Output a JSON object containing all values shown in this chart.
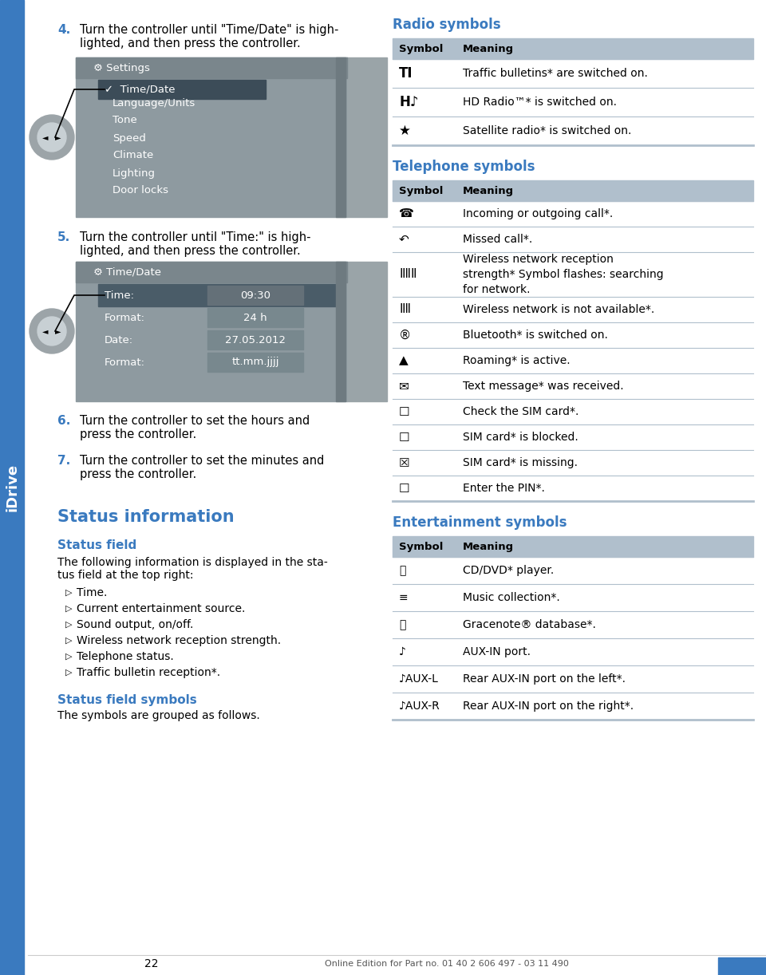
{
  "page_bg": "#ffffff",
  "page_num": "22",
  "idrive_label": "iDrive",
  "blue": "#3a7abf",
  "black": "#000000",
  "white": "#ffffff",
  "table_header_bg": "#b0bfcc",
  "table_divider_color": "#b0bfcc",
  "step4_num": "4.",
  "step4_line1": "Turn the controller until \"Time/Date\" is high-",
  "step4_line2": "lighted, and then press the controller.",
  "step5_num": "5.",
  "step5_line1": "Turn the controller until \"Time:\" is high-",
  "step5_line2": "lighted, and then press the controller.",
  "step6_num": "6.",
  "step6_line1": "Turn the controller to set the hours and",
  "step6_line2": "press the controller.",
  "step7_num": "7.",
  "step7_line1": "Turn the controller to set the minutes and",
  "step7_line2": "press the controller.",
  "status_info_heading": "Status information",
  "status_field_heading": "Status field",
  "status_field_text1": "The following information is displayed in the sta-",
  "status_field_text2": "tus field at the top right:",
  "bullet_items": [
    "Time.",
    "Current entertainment source.",
    "Sound output, on/off.",
    "Wireless network reception strength.",
    "Telephone status.",
    "Traffic bulletin reception*."
  ],
  "status_symbols_heading": "Status field symbols",
  "status_symbols_text": "The symbols are grouped as follows.",
  "radio_heading": "Radio symbols",
  "telephone_heading": "Telephone symbols",
  "entertainment_heading": "Entertainment symbols",
  "footer_text": "Online Edition for Part no. 01 40 2 606 497 - 03 11 490",
  "screen1_title": "⚙ Settings",
  "screen1_highlighted": "✓  Time/Date",
  "screen1_items": [
    "Language/Units",
    "Tone",
    "Speed",
    "Climate",
    "Lighting",
    "Door locks"
  ],
  "screen2_title": "⚙ Time/Date",
  "screen2_rows": [
    [
      "Time:",
      "09:30"
    ],
    [
      "Format:",
      "24 h"
    ],
    [
      "Date:",
      "27.05.2012"
    ],
    [
      "Format:",
      "tt.mm.jjjj"
    ]
  ]
}
